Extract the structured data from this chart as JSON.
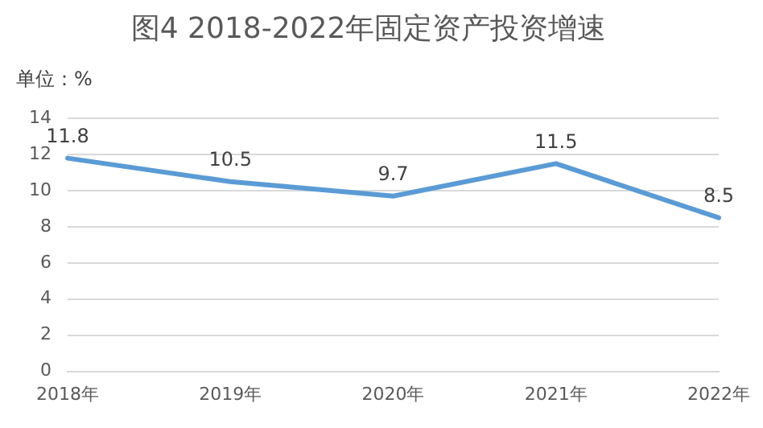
{
  "chart_data": {
    "type": "line",
    "title": "图4 2018-2022年固定资产投资增速",
    "ylabel": "单位：%",
    "categories": [
      "2018年",
      "2019年",
      "2020年",
      "2021年",
      "2022年"
    ],
    "series": [
      {
        "color": "#5b9bd5",
        "values": [
          11.8,
          10.5,
          9.7,
          11.5,
          8.5
        ]
      }
    ],
    "ylim": [
      0,
      14
    ],
    "yticks": [
      0,
      2,
      4,
      6,
      8,
      10,
      12,
      14
    ],
    "grid": "y",
    "legend": false,
    "marker": "none",
    "line_style": "solid",
    "data_labels": true
  }
}
